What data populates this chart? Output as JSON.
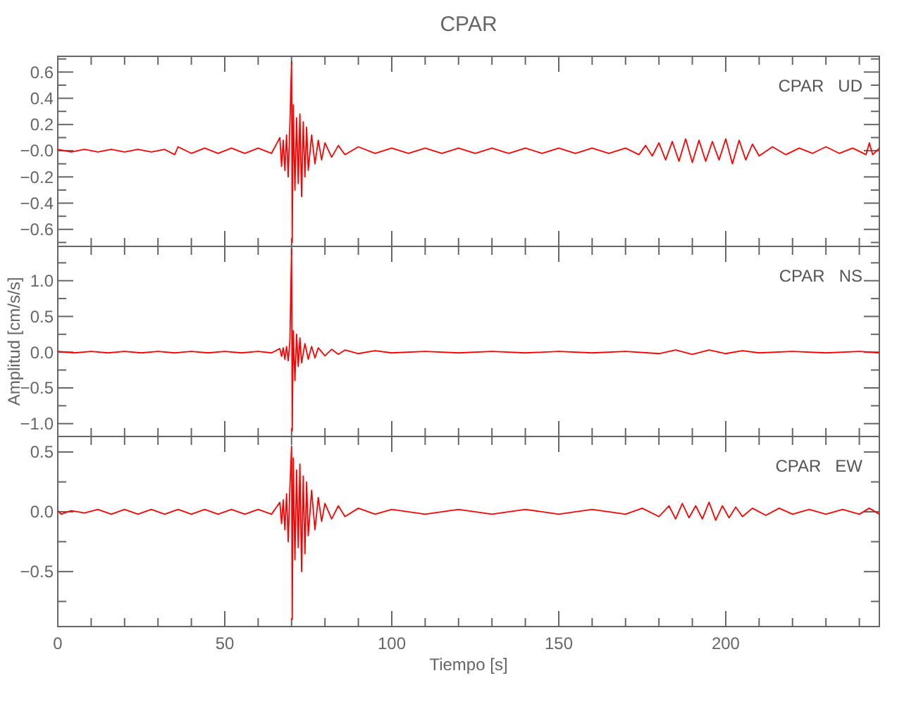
{
  "chart_data": [
    {
      "type": "line",
      "title": "CPAR",
      "annotations": [
        "CPAR   UD"
      ],
      "tick_labels": "y",
      "xlim": [
        0,
        246
      ],
      "ylim": [
        -0.73,
        0.72
      ],
      "xticks": [
        0,
        {
          "value": 10,
          "label": null
        },
        {
          "value": 20,
          "label": null
        },
        {
          "value": 30,
          "label": null
        },
        {
          "value": 40,
          "label": null
        },
        50,
        {
          "value": 60,
          "label": null
        },
        {
          "value": 70,
          "label": null
        },
        {
          "value": 80,
          "label": null
        },
        {
          "value": 90,
          "label": null
        },
        100,
        {
          "value": 110,
          "label": null
        },
        {
          "value": 120,
          "label": null
        },
        {
          "value": 130,
          "label": null
        },
        {
          "value": 140,
          "label": null
        },
        150,
        {
          "value": 160,
          "label": null
        },
        {
          "value": 170,
          "label": null
        },
        {
          "value": 180,
          "label": null
        },
        {
          "value": 190,
          "label": null
        },
        200,
        {
          "value": 210,
          "label": null
        },
        {
          "value": 220,
          "label": null
        },
        {
          "value": 230,
          "label": null
        },
        {
          "value": 240,
          "label": null
        }
      ],
      "yticks": [
        {
          "value": -0.7,
          "label": null
        },
        {
          "value": -0.6,
          "label": "−0.6"
        },
        {
          "value": -0.5,
          "label": null
        },
        {
          "value": -0.4,
          "label": "−0.4"
        },
        {
          "value": -0.3,
          "label": null
        },
        {
          "value": -0.2,
          "label": "−0.2"
        },
        {
          "value": -0.1,
          "label": null
        },
        {
          "value": 0,
          "label": "−0.0"
        },
        {
          "value": 0.1,
          "label": null
        },
        0.2,
        {
          "value": 0.3,
          "label": null
        },
        0.4,
        {
          "value": 0.5,
          "label": null
        },
        0.6,
        {
          "value": 0.7,
          "label": null
        }
      ],
      "series": [
        {
          "color": "#ff0000",
          "x": [
            0,
            4,
            8,
            12,
            16,
            20,
            24,
            28,
            32,
            35,
            36,
            40,
            44,
            48,
            52,
            56,
            60,
            64,
            66.5,
            67,
            67.5,
            68,
            68.5,
            69,
            69.5,
            70,
            70.2,
            70.5,
            71,
            71.5,
            72,
            72.5,
            73,
            73.5,
            74,
            74.5,
            75,
            76,
            77,
            78,
            79,
            80,
            82,
            84,
            86,
            90,
            95,
            100,
            105,
            110,
            115,
            120,
            125,
            130,
            135,
            140,
            145,
            150,
            155,
            160,
            165,
            170,
            174,
            176,
            178,
            180,
            182,
            184,
            186,
            188,
            190,
            192,
            194,
            196,
            198,
            200,
            202,
            204,
            206,
            208,
            210,
            214,
            218,
            222,
            226,
            230,
            234,
            238,
            242,
            243,
            244,
            246
          ],
          "values": [
            0.01,
            -0.01,
            0.01,
            -0.01,
            0.01,
            -0.01,
            0.01,
            -0.01,
            0.01,
            -0.03,
            0.03,
            -0.02,
            0.02,
            -0.02,
            0.02,
            -0.02,
            0.02,
            -0.02,
            0.1,
            -0.12,
            0.08,
            -0.15,
            0.12,
            -0.2,
            0.2,
            0.68,
            -0.7,
            0.35,
            -0.3,
            0.25,
            -0.25,
            0.28,
            -0.35,
            0.22,
            -0.2,
            0.18,
            -0.15,
            0.12,
            -0.1,
            0.08,
            -0.07,
            0.06,
            -0.05,
            0.04,
            -0.03,
            0.03,
            -0.02,
            0.02,
            -0.02,
            0.02,
            -0.02,
            0.02,
            -0.02,
            0.02,
            -0.02,
            0.02,
            -0.02,
            0.02,
            -0.02,
            0.02,
            -0.02,
            0.02,
            -0.03,
            0.04,
            -0.04,
            0.06,
            -0.07,
            0.07,
            -0.08,
            0.09,
            -0.09,
            0.08,
            -0.08,
            0.07,
            -0.07,
            0.09,
            -0.1,
            0.08,
            -0.07,
            0.05,
            -0.04,
            0.03,
            -0.03,
            0.02,
            -0.02,
            0.03,
            -0.02,
            0.02,
            -0.03,
            0.06,
            -0.03,
            0.02
          ]
        }
      ]
    },
    {
      "type": "line",
      "ylabel": "Amplitud [cm/s/s]",
      "annotations": [
        "CPAR   NS"
      ],
      "tick_labels": "y",
      "xlim": [
        0,
        246
      ],
      "ylim": [
        -1.18,
        1.48
      ],
      "xticks": [
        0,
        {
          "value": 10,
          "label": null
        },
        {
          "value": 20,
          "label": null
        },
        {
          "value": 30,
          "label": null
        },
        {
          "value": 40,
          "label": null
        },
        50,
        {
          "value": 60,
          "label": null
        },
        {
          "value": 70,
          "label": null
        },
        {
          "value": 80,
          "label": null
        },
        {
          "value": 90,
          "label": null
        },
        100,
        {
          "value": 110,
          "label": null
        },
        {
          "value": 120,
          "label": null
        },
        {
          "value": 130,
          "label": null
        },
        {
          "value": 140,
          "label": null
        },
        150,
        {
          "value": 160,
          "label": null
        },
        {
          "value": 170,
          "label": null
        },
        {
          "value": 180,
          "label": null
        },
        {
          "value": 190,
          "label": null
        },
        200,
        {
          "value": 210,
          "label": null
        },
        {
          "value": 220,
          "label": null
        },
        {
          "value": 230,
          "label": null
        },
        {
          "value": 240,
          "label": null
        }
      ],
      "yticks": [
        {
          "value": -1.0,
          "label": "−1.0"
        },
        {
          "value": -0.75,
          "label": null
        },
        {
          "value": -0.5,
          "label": "−0.5"
        },
        {
          "value": -0.25,
          "label": null
        },
        {
          "value": 0,
          "label": "0.0"
        },
        {
          "value": 0.25,
          "label": null
        },
        0.5,
        {
          "value": 0.75,
          "label": null
        },
        {
          "value": 1,
          "label": "1.0"
        },
        {
          "value": 1.25,
          "label": null
        }
      ],
      "series": [
        {
          "color": "#ff0000",
          "x": [
            0,
            5,
            10,
            15,
            20,
            25,
            30,
            35,
            40,
            45,
            50,
            55,
            60,
            64,
            66.5,
            67,
            67.5,
            68,
            68.5,
            69,
            69.5,
            70,
            70.2,
            70.5,
            71,
            71.5,
            72,
            72.5,
            73,
            74,
            75,
            76,
            77,
            78,
            80,
            82,
            84,
            86,
            90,
            95,
            100,
            110,
            120,
            130,
            140,
            150,
            160,
            170,
            180,
            185,
            190,
            195,
            200,
            205,
            210,
            220,
            230,
            240,
            246
          ],
          "values": [
            0.01,
            -0.01,
            0.01,
            -0.01,
            0.01,
            -0.01,
            0.01,
            -0.01,
            0.01,
            -0.01,
            0.01,
            -0.01,
            0.01,
            -0.01,
            0.05,
            -0.06,
            0.06,
            -0.1,
            0.08,
            -0.12,
            0.15,
            1.45,
            -1.1,
            0.3,
            -0.4,
            0.25,
            -0.2,
            0.2,
            -0.15,
            0.12,
            -0.1,
            0.08,
            -0.08,
            0.06,
            -0.05,
            0.04,
            -0.03,
            0.03,
            -0.02,
            0.02,
            -0.01,
            0.01,
            -0.01,
            0.01,
            -0.01,
            0.01,
            -0.01,
            0.01,
            -0.02,
            0.03,
            -0.03,
            0.03,
            -0.02,
            0.02,
            -0.01,
            0.01,
            -0.01,
            0.01,
            -0.01
          ]
        }
      ]
    },
    {
      "type": "line",
      "xlabel": "Tiempo [s]",
      "annotations": [
        "CPAR   EW"
      ],
      "xlim": [
        0,
        246
      ],
      "ylim": [
        -0.96,
        0.63
      ],
      "xticks": [
        0,
        {
          "value": 10,
          "label": null
        },
        {
          "value": 20,
          "label": null
        },
        {
          "value": 30,
          "label": null
        },
        {
          "value": 40,
          "label": null
        },
        50,
        {
          "value": 60,
          "label": null
        },
        {
          "value": 70,
          "label": null
        },
        {
          "value": 80,
          "label": null
        },
        {
          "value": 90,
          "label": null
        },
        100,
        {
          "value": 110,
          "label": null
        },
        {
          "value": 120,
          "label": null
        },
        {
          "value": 130,
          "label": null
        },
        {
          "value": 140,
          "label": null
        },
        150,
        {
          "value": 160,
          "label": null
        },
        {
          "value": 170,
          "label": null
        },
        {
          "value": 180,
          "label": null
        },
        {
          "value": 190,
          "label": null
        },
        200,
        {
          "value": 210,
          "label": null
        },
        {
          "value": 220,
          "label": null
        },
        {
          "value": 230,
          "label": null
        },
        {
          "value": 240,
          "label": null
        }
      ],
      "yticks": [
        {
          "value": -0.75,
          "label": null
        },
        {
          "value": -0.5,
          "label": "−0.5"
        },
        {
          "value": -0.25,
          "label": null
        },
        {
          "value": 0,
          "label": "0.0"
        },
        {
          "value": 0.25,
          "label": null
        },
        0.5
      ],
      "series": [
        {
          "color": "#ff0000",
          "x": [
            0,
            1,
            4,
            8,
            12,
            16,
            20,
            24,
            28,
            32,
            36,
            40,
            44,
            48,
            52,
            56,
            60,
            64,
            66.5,
            67,
            67.5,
            68,
            68.5,
            69,
            69.5,
            70,
            70.2,
            70.5,
            71,
            71.5,
            72,
            72.5,
            73,
            73.5,
            74,
            74.5,
            75,
            76,
            77,
            78,
            79,
            80,
            82,
            84,
            86,
            90,
            95,
            100,
            110,
            120,
            130,
            140,
            150,
            160,
            170,
            175,
            180,
            183,
            185,
            187,
            189,
            191,
            193,
            195,
            197,
            199,
            201,
            203,
            205,
            208,
            212,
            216,
            220,
            225,
            230,
            235,
            240,
            243,
            246
          ],
          "values": [
            0.01,
            -0.02,
            0.01,
            -0.01,
            0.02,
            -0.02,
            0.02,
            -0.02,
            0.02,
            -0.02,
            0.02,
            -0.02,
            0.02,
            -0.02,
            0.02,
            -0.02,
            0.02,
            -0.02,
            0.08,
            -0.1,
            0.1,
            -0.15,
            0.15,
            -0.25,
            0.2,
            0.55,
            -0.9,
            0.45,
            -0.4,
            0.35,
            -0.3,
            0.4,
            -0.5,
            0.3,
            -0.35,
            0.25,
            -0.2,
            0.18,
            -0.15,
            0.12,
            -0.08,
            0.07,
            -0.06,
            0.05,
            -0.04,
            0.03,
            -0.02,
            0.02,
            -0.02,
            0.02,
            -0.02,
            0.02,
            -0.02,
            0.02,
            -0.02,
            0.03,
            -0.04,
            0.05,
            -0.06,
            0.07,
            -0.05,
            0.05,
            -0.06,
            0.08,
            -0.07,
            0.05,
            -0.05,
            0.04,
            -0.04,
            0.03,
            -0.03,
            0.03,
            -0.02,
            0.02,
            -0.02,
            0.02,
            -0.02,
            0.03,
            -0.02
          ]
        }
      ]
    }
  ]
}
